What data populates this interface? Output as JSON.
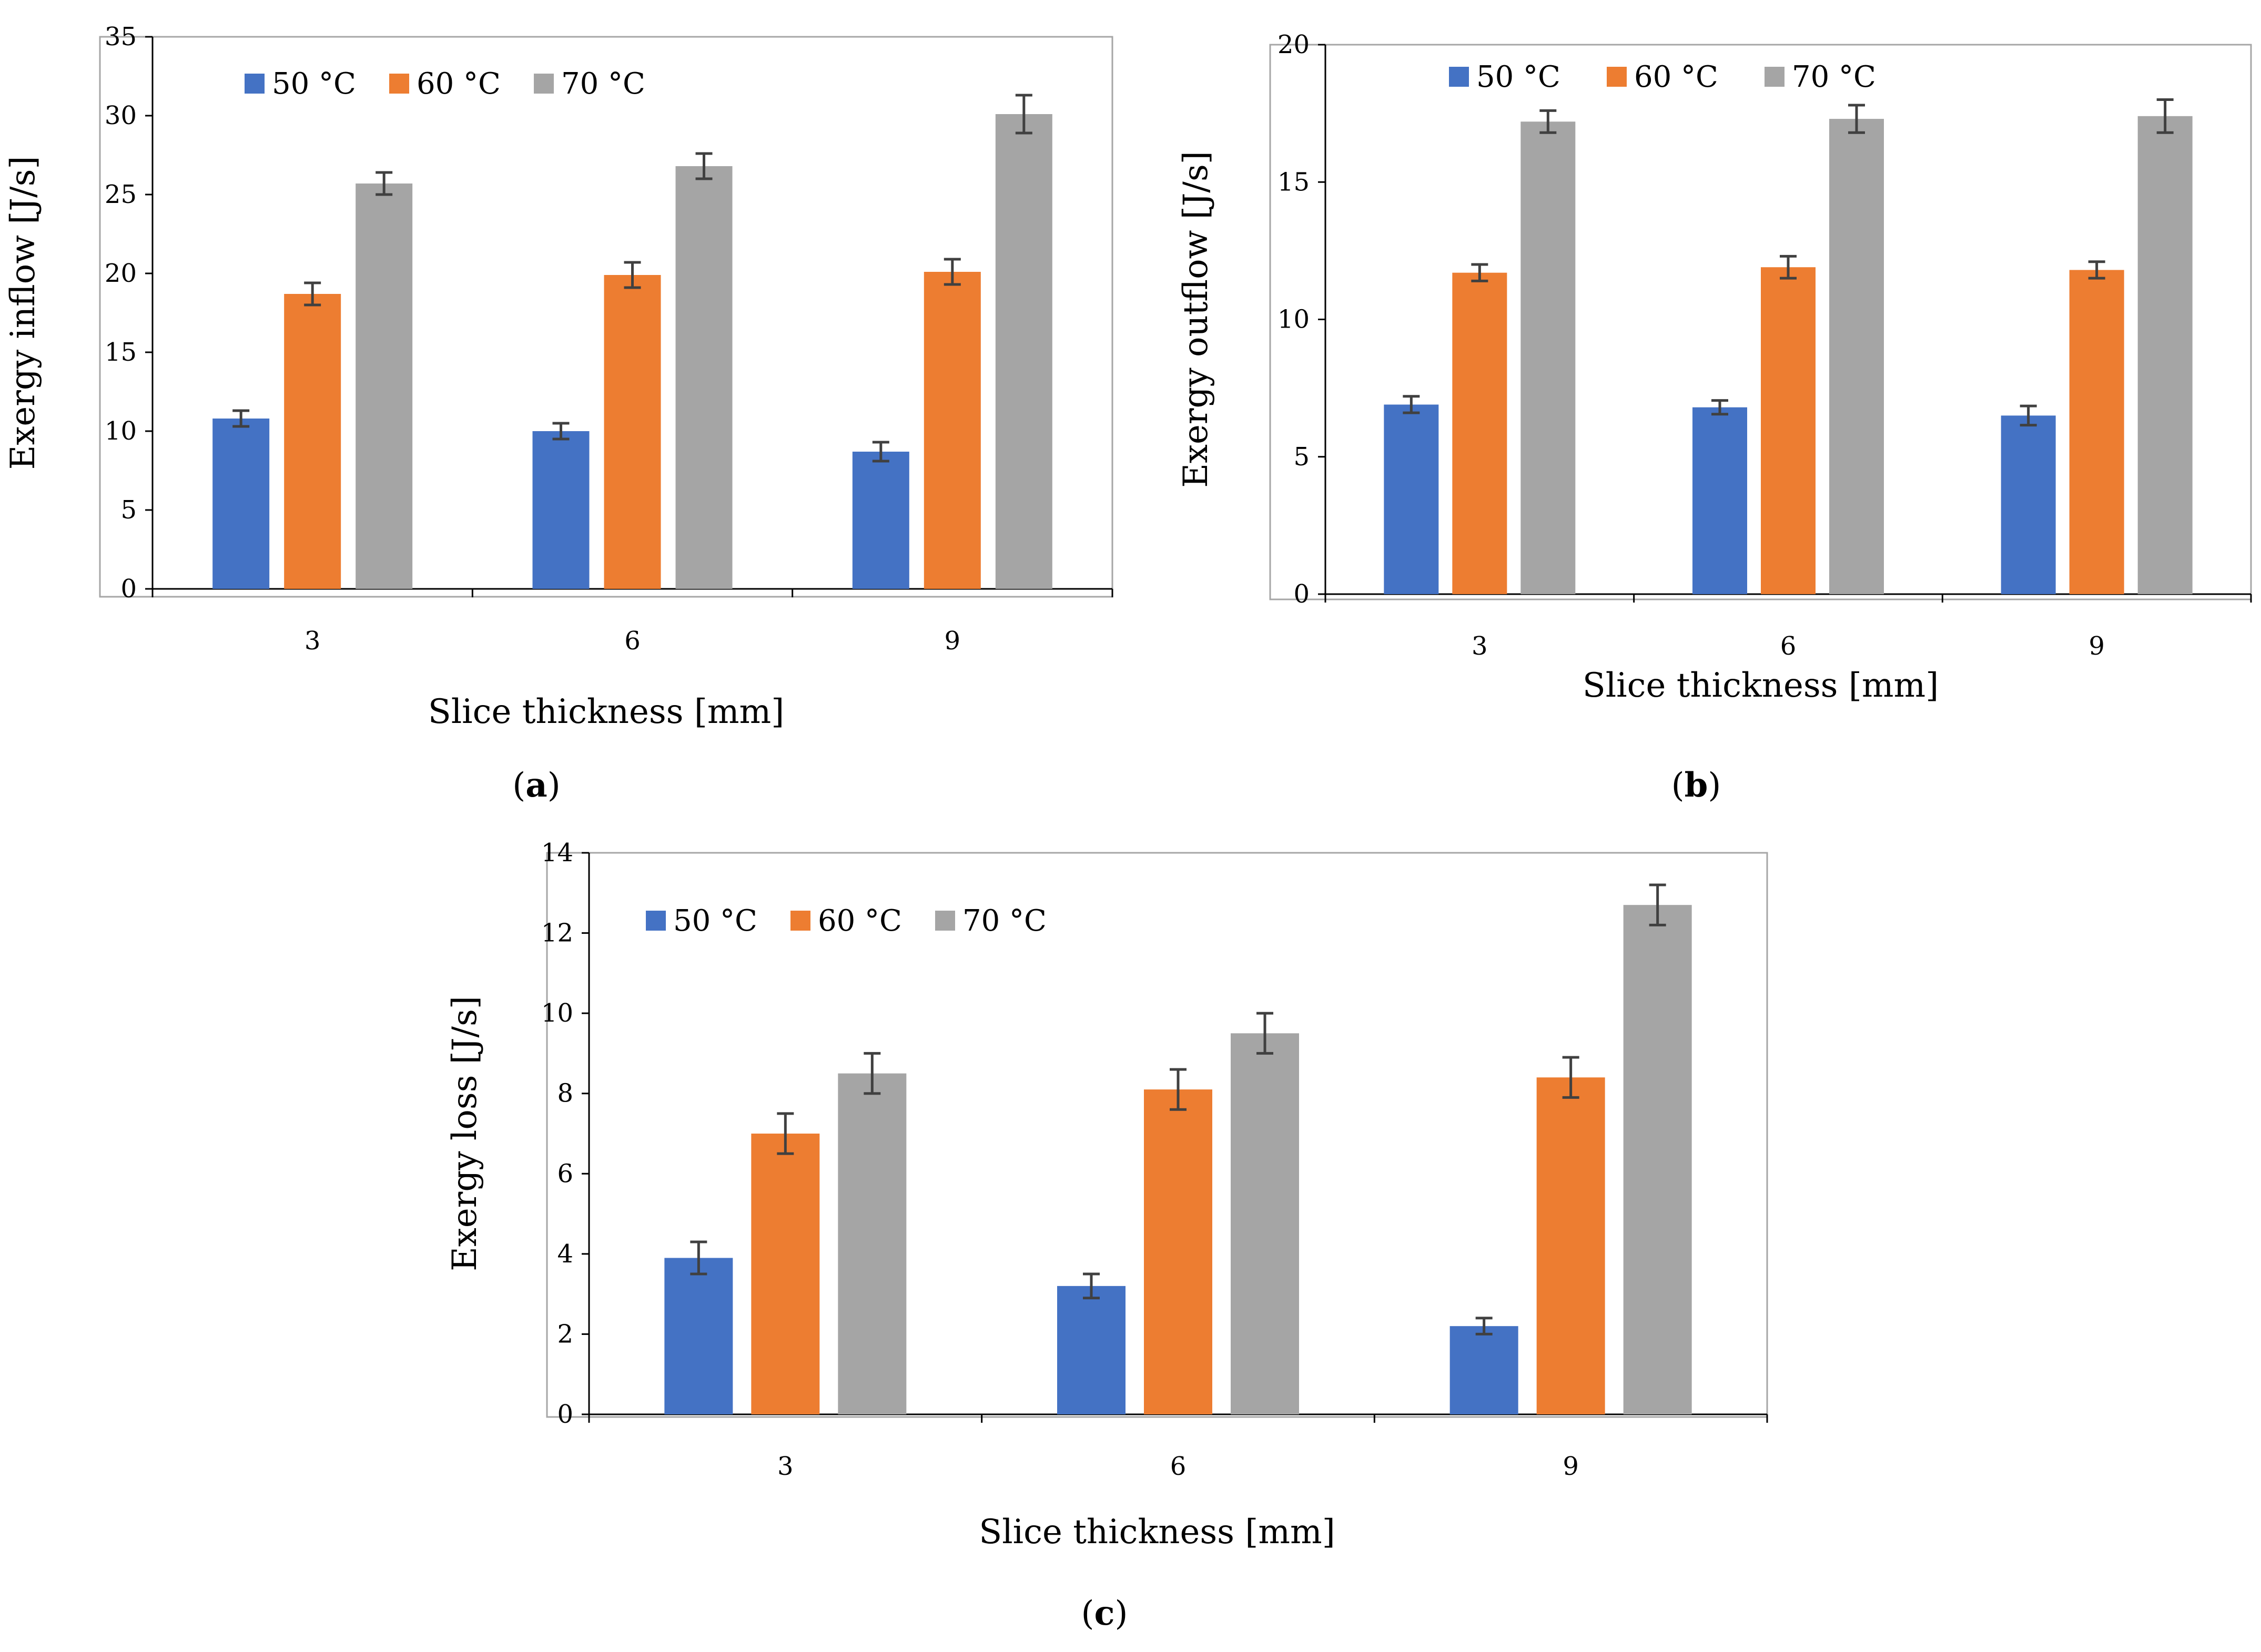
{
  "colors": {
    "s50": "#4472C4",
    "s60": "#ED7D31",
    "s70": "#A5A5A5",
    "errorbar": "#404040",
    "axis": "#000000",
    "frame": "#A6A6A6"
  },
  "chart_data": [
    {
      "id": "a",
      "type": "bar",
      "panel_letter": "a",
      "categories": [
        "3",
        "6",
        "9"
      ],
      "series": [
        {
          "name": "50 °C",
          "values": [
            10.8,
            10.0,
            8.7
          ],
          "errors": [
            0.5,
            0.5,
            0.6
          ]
        },
        {
          "name": "60 °C",
          "values": [
            18.7,
            19.9,
            20.1
          ],
          "errors": [
            0.7,
            0.8,
            0.8
          ]
        },
        {
          "name": "70 °C",
          "values": [
            25.7,
            26.8,
            30.1
          ],
          "errors": [
            0.7,
            0.8,
            1.2
          ]
        }
      ],
      "xlabel": "Slice thickness [mm]",
      "ylabel": "Exergy inflow [J/s]",
      "ylim": [
        0,
        35
      ],
      "yticks": [
        "0",
        "5",
        "10",
        "15",
        "20",
        "25",
        "30",
        "35"
      ],
      "legend": "top-left"
    },
    {
      "id": "b",
      "type": "bar",
      "panel_letter": "b",
      "categories": [
        "3",
        "6",
        "9"
      ],
      "series": [
        {
          "name": "50 °C",
          "values": [
            6.9,
            6.8,
            6.5
          ],
          "errors": [
            0.3,
            0.25,
            0.35
          ]
        },
        {
          "name": "60 °C",
          "values": [
            11.7,
            11.9,
            11.8
          ],
          "errors": [
            0.3,
            0.4,
            0.3
          ]
        },
        {
          "name": "70 °C",
          "values": [
            17.2,
            17.3,
            17.4
          ],
          "errors": [
            0.4,
            0.5,
            0.6
          ]
        }
      ],
      "xlabel": "Slice thickness [mm]",
      "ylabel": "Exergy outflow [J/s]",
      "ylim": [
        0,
        20
      ],
      "yticks": [
        "0",
        "5",
        "10",
        "15",
        "20"
      ],
      "legend": "top"
    },
    {
      "id": "c",
      "type": "bar",
      "panel_letter": "c",
      "categories": [
        "3",
        "6",
        "9"
      ],
      "series": [
        {
          "name": "50 °C",
          "values": [
            3.9,
            3.2,
            2.2
          ],
          "errors": [
            0.4,
            0.3,
            0.2
          ]
        },
        {
          "name": "60 °C",
          "values": [
            7.0,
            8.1,
            8.4
          ],
          "errors": [
            0.5,
            0.5,
            0.5
          ]
        },
        {
          "name": "70 °C",
          "values": [
            8.5,
            9.5,
            12.7
          ],
          "errors": [
            0.5,
            0.5,
            0.5
          ]
        }
      ],
      "xlabel": "Slice thickness [mm]",
      "ylabel": "Exergy loss [J/s]",
      "ylim": [
        0,
        14
      ],
      "yticks": [
        "0",
        "2",
        "4",
        "6",
        "8",
        "10",
        "12",
        "14"
      ],
      "legend": "top-left"
    }
  ]
}
